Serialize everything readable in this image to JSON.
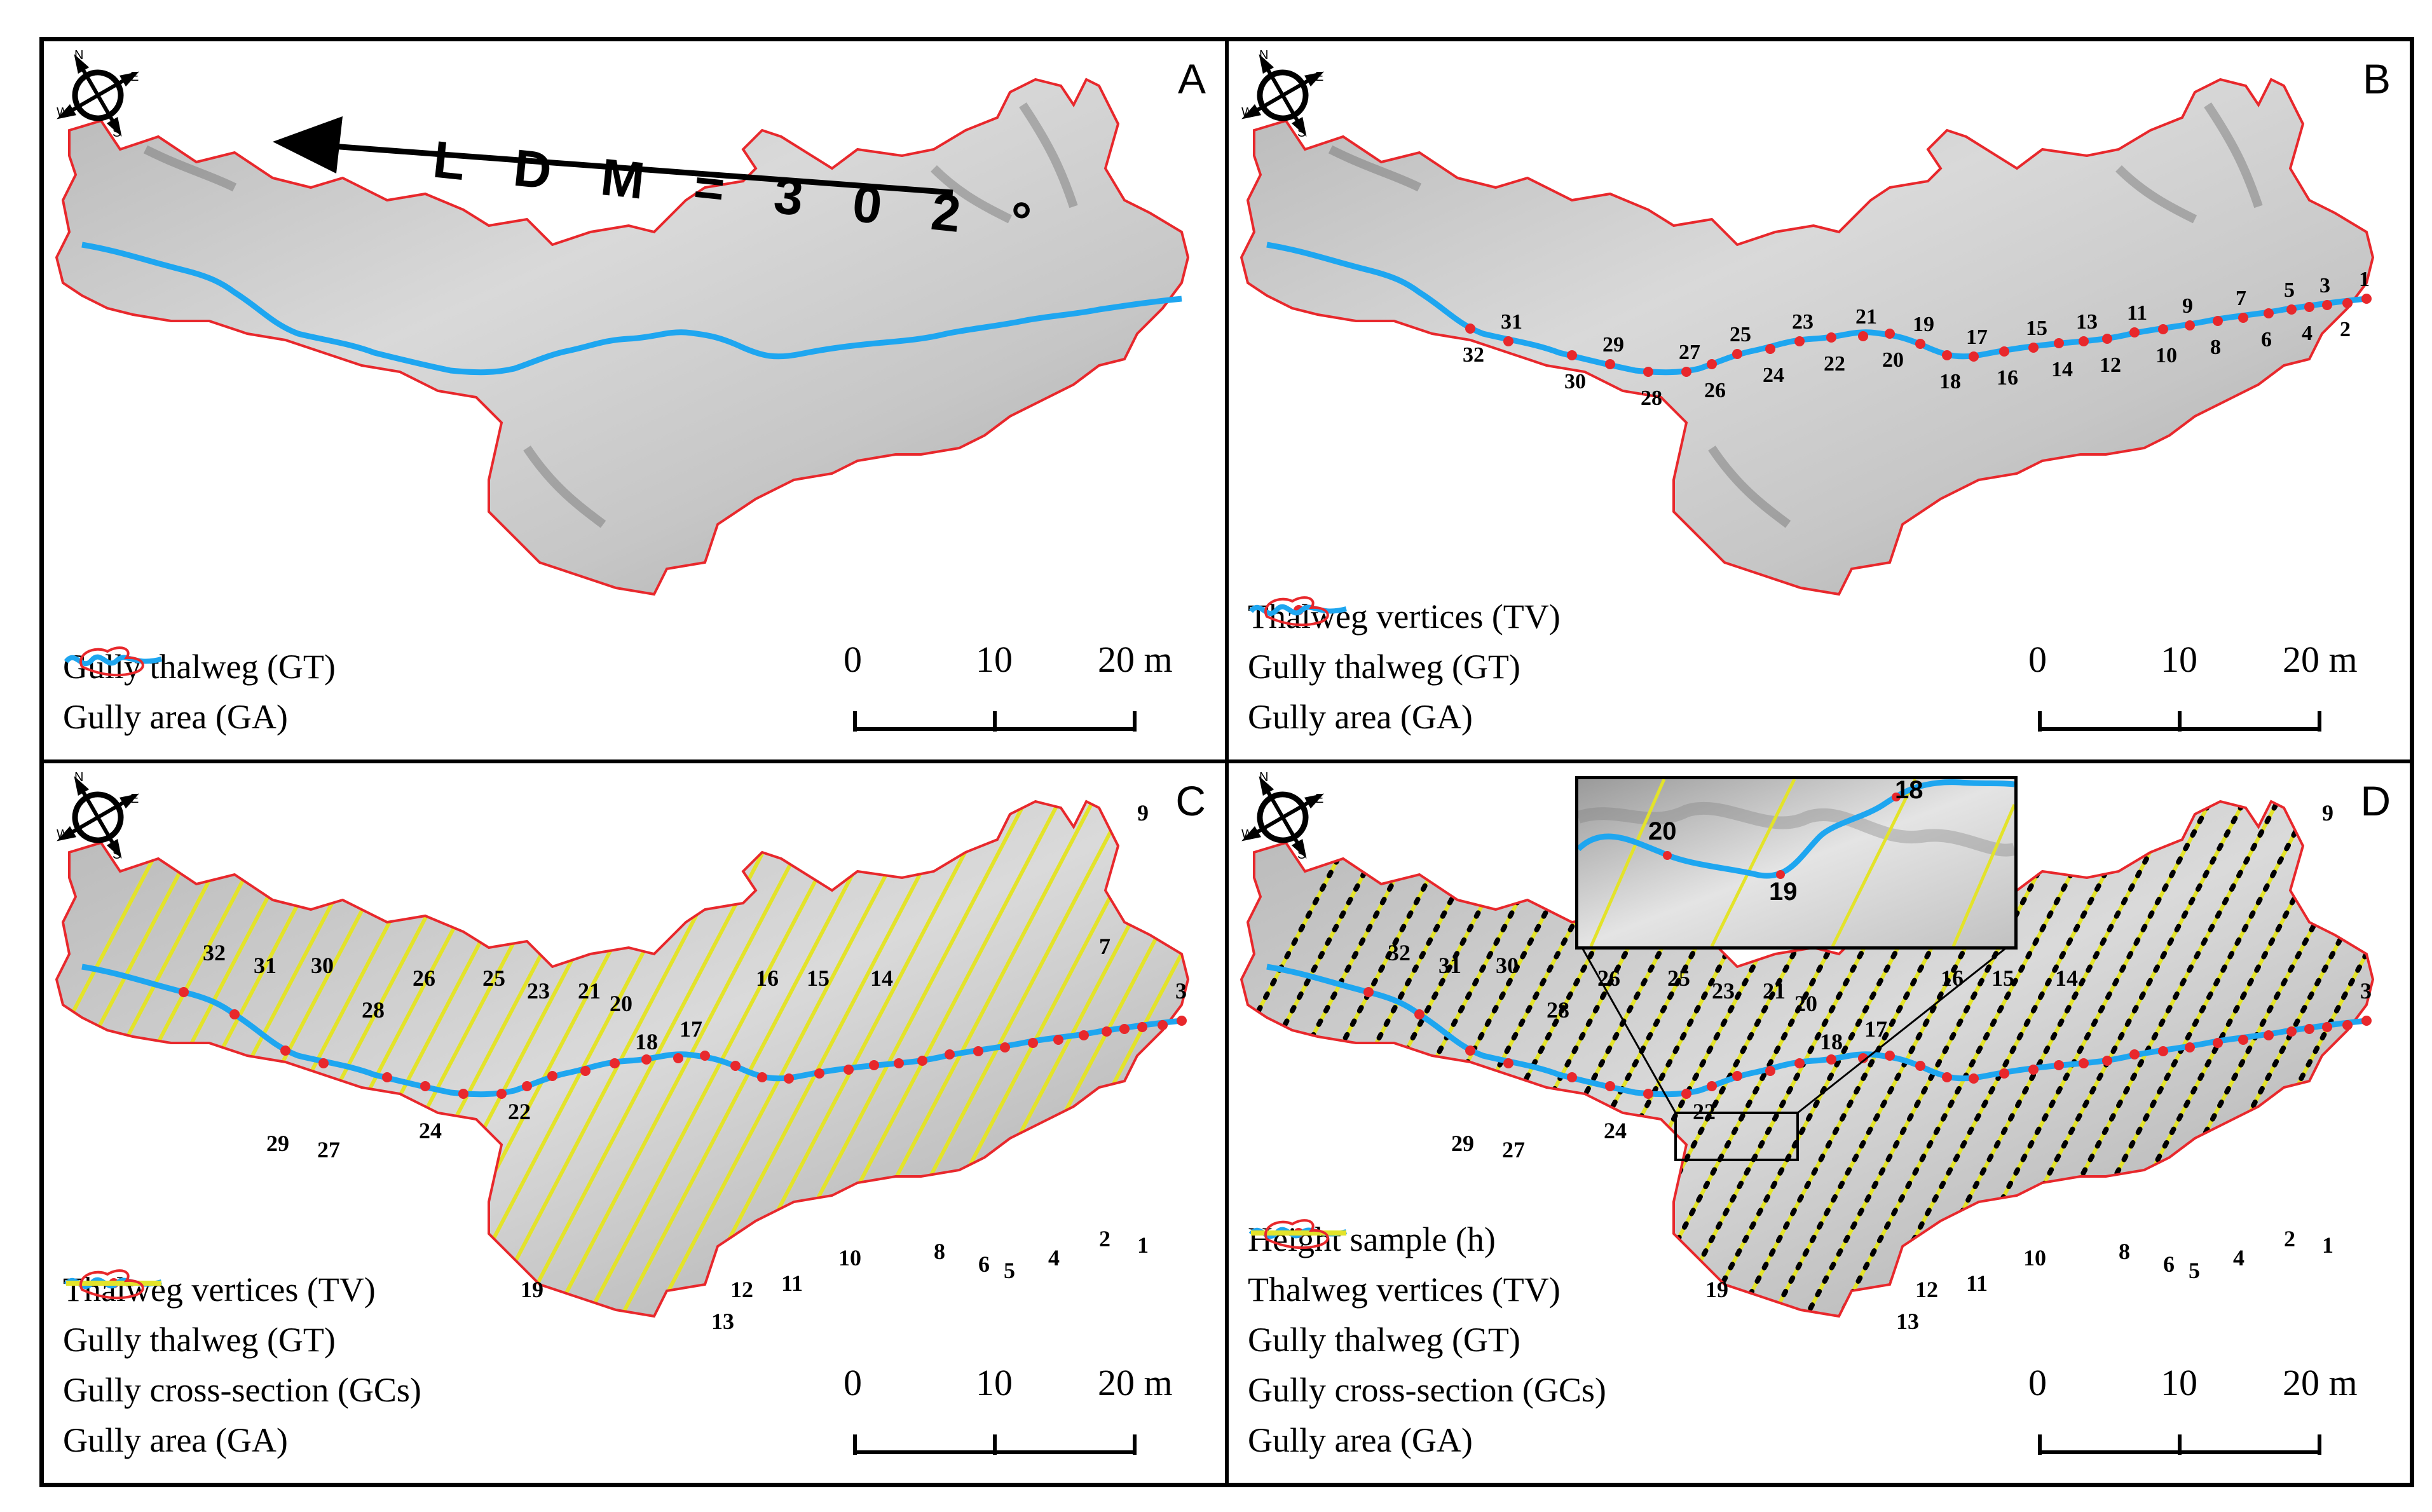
{
  "panels": {
    "A": "A",
    "B": "B",
    "C": "C",
    "D": "D"
  },
  "ldm_text": "L D M  =  3 0 2 °",
  "compass": {
    "n": "N",
    "e": "E",
    "s": "S",
    "w": "W"
  },
  "legend": {
    "tv": "Thalweg vertices (TV)",
    "gt": "Gully thalweg (GT)",
    "gc": "Gully cross-section (GCs)",
    "ga": "Gully area (GA)",
    "h": "Height sample (h)"
  },
  "scale": {
    "t0": "0",
    "t1": "10",
    "t2": "20 m"
  },
  "inset_labels": [
    "20",
    "19",
    "18"
  ],
  "colors": {
    "thalweg": "#1ea6f0",
    "area": "#e8282c",
    "vertex": "#e8282c",
    "cross": "#e3e32a",
    "sample": "#000000"
  },
  "vertex_labels_B": [
    "1",
    "2",
    "3",
    "4",
    "5",
    "6",
    "7",
    "8",
    "9",
    "10",
    "11",
    "12",
    "13",
    "14",
    "15",
    "16",
    "17",
    "18",
    "19",
    "20",
    "21",
    "22",
    "23",
    "24",
    "25",
    "26",
    "27",
    "28",
    "29",
    "30",
    "31",
    "32"
  ],
  "section_labels_C": [
    "1",
    "2",
    "3",
    "4",
    "5",
    "6",
    "7",
    "8",
    "9",
    "10",
    "11",
    "12",
    "13",
    "14",
    "15",
    "16",
    "17",
    "18",
    "19",
    "20",
    "21",
    "22",
    "23",
    "24",
    "25",
    "26",
    "27",
    "28",
    "29",
    "30",
    "31",
    "32"
  ],
  "section_labels_D": [
    "1",
    "2",
    "3",
    "4",
    "5",
    "6",
    "8",
    "9",
    "10",
    "11",
    "12",
    "13",
    "14",
    "15",
    "16",
    "17",
    "18",
    "19",
    "20",
    "21",
    "22",
    "23",
    "24",
    "25",
    "26",
    "27",
    "28",
    "29",
    "30",
    "31",
    "32"
  ]
}
